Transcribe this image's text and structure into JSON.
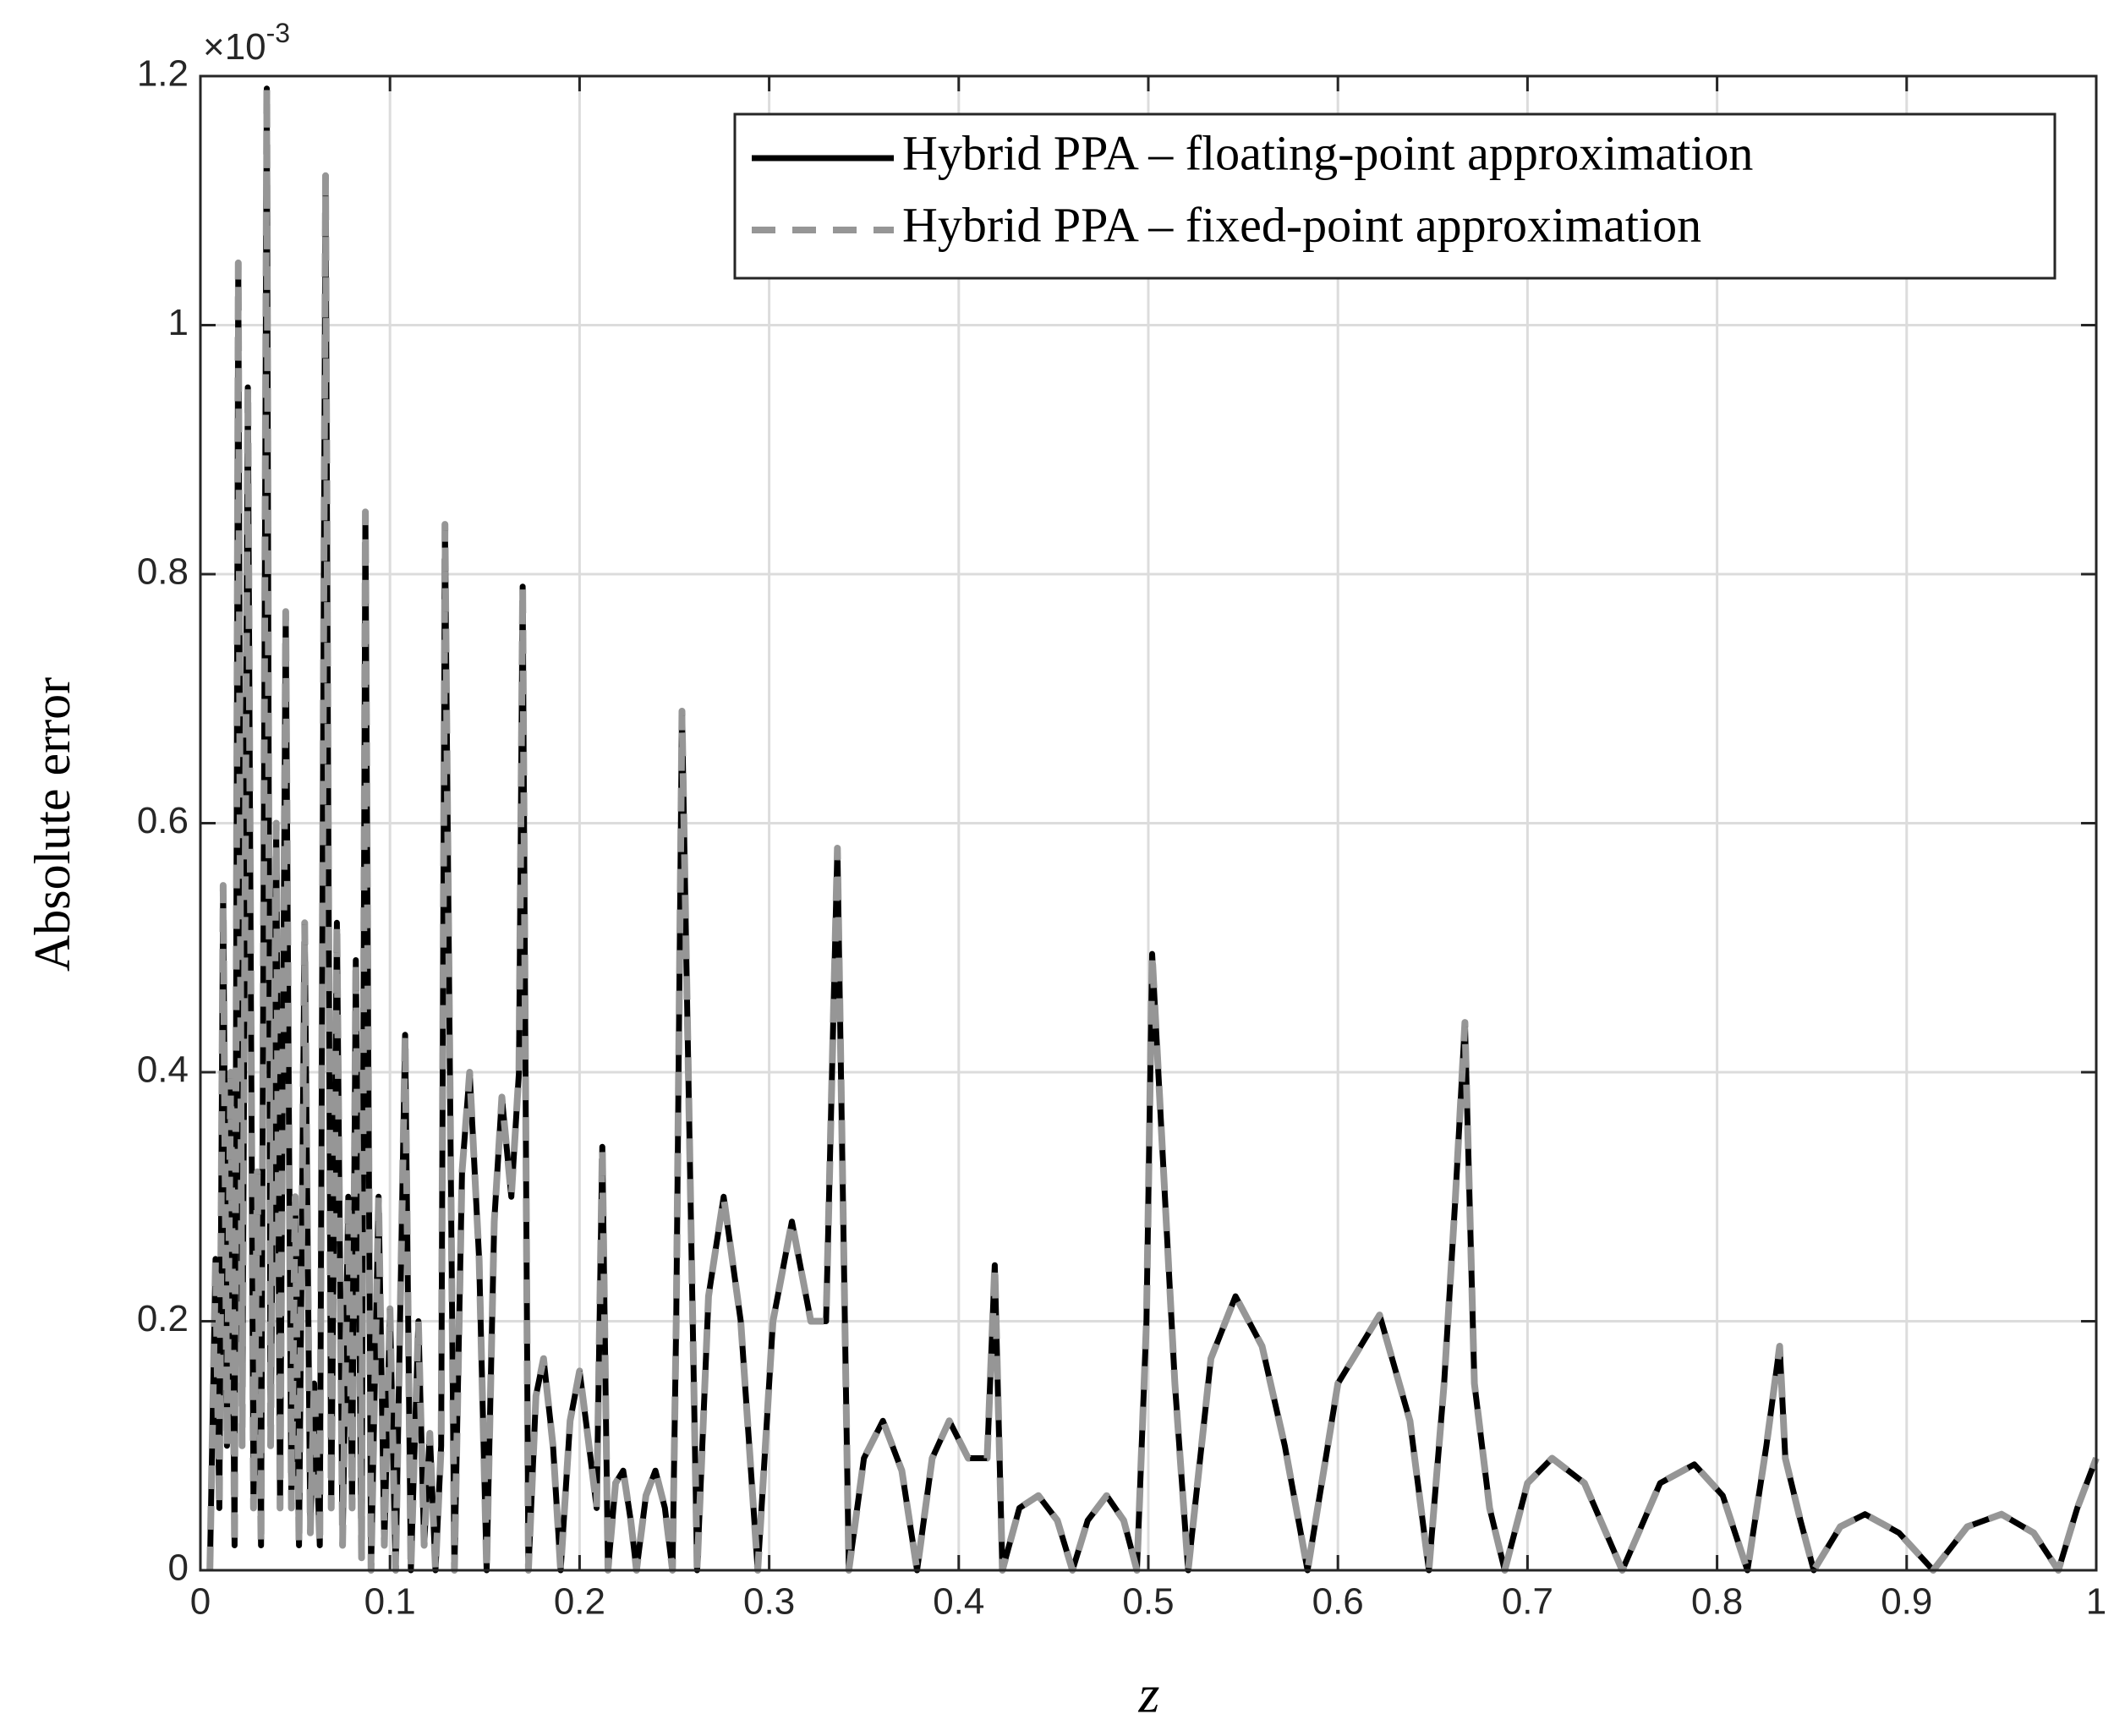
{
  "chart_data": {
    "type": "line",
    "y_label": "Absolute error",
    "x_label": "z",
    "y_multiplier": {
      "base": "×10",
      "exponent": "-3"
    },
    "xlim": [
      0,
      1
    ],
    "xticks": [
      0,
      0.1,
      0.2,
      0.3,
      0.4,
      0.5,
      0.6,
      0.7,
      0.8,
      0.9,
      1
    ],
    "ylim": [
      0,
      1.2
    ],
    "yticks": [
      0,
      0.2,
      0.4,
      0.6,
      0.8,
      1,
      1.2
    ],
    "grid": true,
    "legend": "upper right",
    "x": [
      0.005,
      0.008,
      0.01,
      0.012,
      0.014,
      0.016,
      0.018,
      0.02,
      0.022,
      0.025,
      0.028,
      0.03,
      0.032,
      0.035,
      0.037,
      0.04,
      0.042,
      0.045,
      0.048,
      0.05,
      0.052,
      0.055,
      0.058,
      0.06,
      0.063,
      0.066,
      0.069,
      0.072,
      0.075,
      0.078,
      0.08,
      0.082,
      0.085,
      0.087,
      0.09,
      0.094,
      0.097,
      0.1,
      0.103,
      0.108,
      0.111,
      0.115,
      0.118,
      0.121,
      0.124,
      0.127,
      0.129,
      0.134,
      0.138,
      0.142,
      0.147,
      0.151,
      0.155,
      0.159,
      0.164,
      0.168,
      0.17,
      0.173,
      0.177,
      0.181,
      0.186,
      0.19,
      0.195,
      0.2,
      0.205,
      0.209,
      0.212,
      0.215,
      0.219,
      0.223,
      0.227,
      0.23,
      0.235,
      0.24,
      0.245,
      0.249,
      0.251,
      0.254,
      0.262,
      0.268,
      0.276,
      0.285,
      0.294,
      0.302,
      0.312,
      0.322,
      0.33,
      0.336,
      0.342,
      0.35,
      0.36,
      0.37,
      0.378,
      0.386,
      0.395,
      0.405,
      0.415,
      0.419,
      0.423,
      0.432,
      0.442,
      0.452,
      0.46,
      0.468,
      0.478,
      0.487,
      0.494,
      0.499,
      0.502,
      0.507,
      0.514,
      0.521,
      0.533,
      0.546,
      0.56,
      0.572,
      0.584,
      0.6,
      0.622,
      0.638,
      0.648,
      0.656,
      0.662,
      0.667,
      0.672,
      0.68,
      0.688,
      0.7,
      0.713,
      0.73,
      0.75,
      0.77,
      0.788,
      0.803,
      0.816,
      0.826,
      0.833,
      0.836,
      0.844,
      0.851,
      0.865,
      0.878,
      0.896,
      0.914,
      0.932,
      0.95,
      0.967,
      0.98,
      0.99,
      1.0
    ],
    "series": [
      {
        "name": "Hybrid PPA – floating-point approximation",
        "color": "#000000",
        "style": "solid",
        "values": [
          0,
          0.25,
          0.05,
          0.55,
          0.1,
          0.4,
          0.02,
          1.05,
          0.1,
          0.95,
          0.05,
          0.32,
          0.02,
          1.19,
          0.1,
          0.6,
          0.05,
          0.77,
          0.05,
          0.3,
          0.02,
          0.52,
          0.03,
          0.15,
          0.02,
          1.12,
          0.05,
          0.52,
          0.02,
          0.3,
          0.05,
          0.49,
          0.01,
          0.85,
          0,
          0.3,
          0.02,
          0.21,
          0,
          0.43,
          0,
          0.2,
          0.02,
          0.11,
          0,
          0.1,
          0.84,
          0,
          0.32,
          0.4,
          0.25,
          0,
          0.28,
          0.38,
          0.3,
          0.4,
          0.79,
          0,
          0.14,
          0.17,
          0.1,
          0,
          0.12,
          0.16,
          0.1,
          0.05,
          0.34,
          0,
          0.07,
          0.08,
          0.04,
          0,
          0.06,
          0.08,
          0.05,
          0,
          0.2,
          0.69,
          0,
          0.22,
          0.3,
          0.2,
          0,
          0.2,
          0.28,
          0.2,
          0.2,
          0.58,
          0,
          0.09,
          0.12,
          0.08,
          0,
          0.09,
          0.12,
          0.09,
          0.09,
          0.245,
          0,
          0.05,
          0.06,
          0.04,
          0,
          0.04,
          0.06,
          0.04,
          0,
          0.2,
          0.495,
          0.35,
          0.15,
          0,
          0.17,
          0.22,
          0.18,
          0.1,
          0,
          0.15,
          0.205,
          0.12,
          0,
          0.15,
          0.3,
          0.44,
          0.15,
          0.05,
          0,
          0.07,
          0.09,
          0.07,
          0,
          0.07,
          0.085,
          0.06,
          0,
          0.1,
          0.18,
          0.09,
          0.04,
          0,
          0.035,
          0.045,
          0.03,
          0,
          0.035,
          0.045,
          0.03,
          0,
          0.05,
          0.09
        ]
      },
      {
        "name": "Hybrid PPA – fixed-point approximation",
        "color": "#969696",
        "style": "dashed",
        "values": [
          0,
          0.25,
          0.05,
          0.55,
          0.1,
          0.4,
          0.02,
          1.05,
          0.1,
          0.95,
          0.05,
          0.32,
          0.02,
          1.19,
          0.1,
          0.6,
          0.05,
          0.77,
          0.05,
          0.3,
          0.02,
          0.52,
          0.03,
          0.15,
          0.02,
          1.12,
          0.05,
          0.52,
          0.02,
          0.3,
          0.05,
          0.49,
          0.01,
          0.85,
          0,
          0.3,
          0.02,
          0.21,
          0,
          0.43,
          0,
          0.2,
          0.02,
          0.11,
          0,
          0.1,
          0.84,
          0,
          0.32,
          0.4,
          0.25,
          0,
          0.28,
          0.38,
          0.3,
          0.4,
          0.79,
          0,
          0.14,
          0.17,
          0.1,
          0,
          0.12,
          0.16,
          0.1,
          0.05,
          0.34,
          0,
          0.07,
          0.08,
          0.04,
          0,
          0.06,
          0.08,
          0.05,
          0,
          0.2,
          0.69,
          0,
          0.22,
          0.3,
          0.2,
          0,
          0.2,
          0.28,
          0.2,
          0.2,
          0.58,
          0,
          0.09,
          0.12,
          0.08,
          0,
          0.09,
          0.12,
          0.09,
          0.09,
          0.245,
          0,
          0.05,
          0.06,
          0.04,
          0,
          0.04,
          0.06,
          0.04,
          0,
          0.2,
          0.495,
          0.35,
          0.15,
          0,
          0.17,
          0.22,
          0.18,
          0.1,
          0,
          0.15,
          0.205,
          0.12,
          0,
          0.15,
          0.3,
          0.44,
          0.15,
          0.05,
          0,
          0.07,
          0.09,
          0.07,
          0,
          0.07,
          0.085,
          0.06,
          0,
          0.1,
          0.18,
          0.09,
          0.04,
          0,
          0.035,
          0.045,
          0.03,
          0,
          0.035,
          0.045,
          0.03,
          0,
          0.05,
          0.09
        ]
      }
    ]
  }
}
